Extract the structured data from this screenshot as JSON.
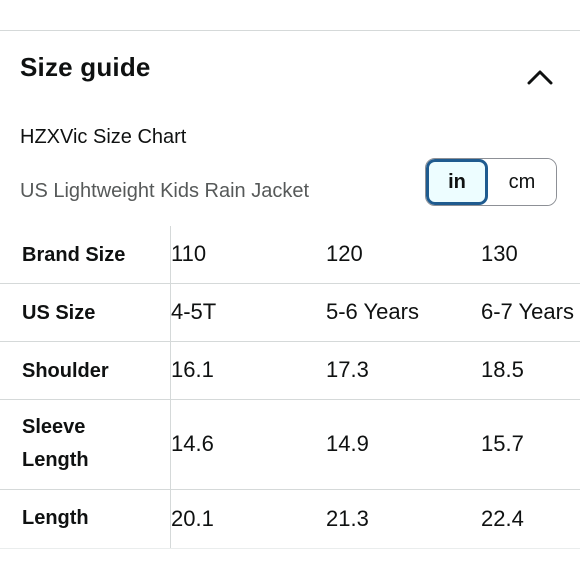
{
  "header": {
    "title": "Size guide",
    "toggle_icon": "chevron-up-icon"
  },
  "chart": {
    "brand": "HZXVic Size Chart",
    "product": "US Lightweight Kids Rain Jacket"
  },
  "units": {
    "options": [
      "in",
      "cm"
    ],
    "selected": "in"
  },
  "table": {
    "rows": [
      {
        "label": "Brand Size",
        "values": [
          "110",
          "120",
          "130"
        ]
      },
      {
        "label": "US Size",
        "values": [
          "4-5T",
          "5-6 Years",
          "6-7 Years"
        ]
      },
      {
        "label": "Shoulder",
        "values": [
          "16.1",
          "17.3",
          "18.5"
        ]
      },
      {
        "label": "Sleeve Length",
        "values": [
          "14.6",
          "14.9",
          "15.7"
        ]
      },
      {
        "label": "Length",
        "values": [
          "20.1",
          "21.3",
          "22.4"
        ]
      }
    ]
  }
}
